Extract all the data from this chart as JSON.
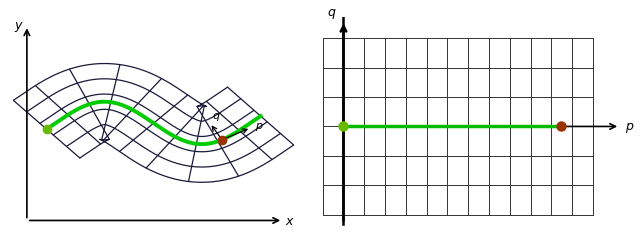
{
  "fig_width": 6.4,
  "fig_height": 2.41,
  "dpi": 100,
  "background_color": "#ffffff",
  "left_panel": {
    "x_axis_label": "x",
    "y_axis_label": "y",
    "p_label": "p",
    "q_label": "q",
    "grid_color": "#1a1a3a",
    "path_color": "#00cc00",
    "dot_green": "#66bb00",
    "dot_red": "#993300",
    "n_transverse": 11,
    "n_longitudinal": 5,
    "band": 0.18
  },
  "right_panel": {
    "x_axis_label": "p",
    "y_axis_label": "q",
    "path_color": "#00bb00",
    "grid_color": "#333333",
    "dot_green": "#66bb00",
    "dot_red": "#993300",
    "n_rows": 6,
    "n_cols": 13
  }
}
